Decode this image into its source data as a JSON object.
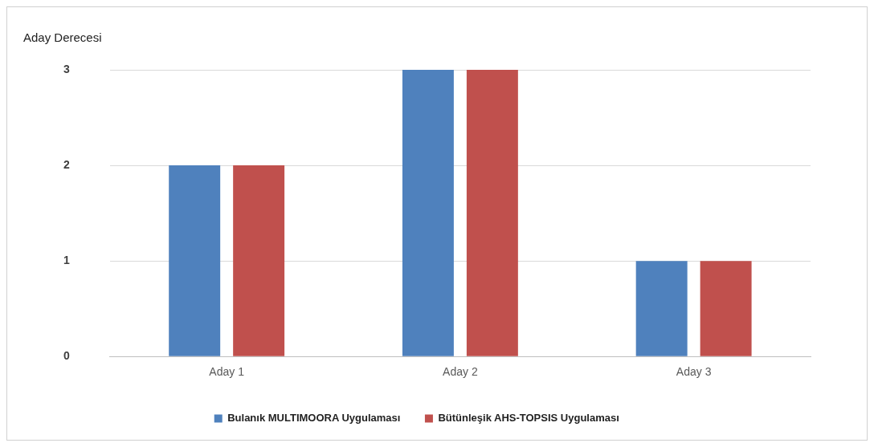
{
  "chart_data": {
    "type": "bar",
    "title": "Aday Derecesi",
    "categories": [
      "Aday 1",
      "Aday 2",
      "Aday 3"
    ],
    "series": [
      {
        "name": "Bulanık MULTIMOORA Uygulaması",
        "color": "#4f81bd",
        "values": [
          2,
          3,
          1
        ]
      },
      {
        "name": "Bütünleşik AHS-TOPSIS Uygulaması",
        "color": "#c0504d",
        "values": [
          2,
          3,
          1
        ]
      }
    ],
    "ylim": [
      0,
      3
    ],
    "yticks": [
      0,
      1,
      2,
      3
    ],
    "grid": "y",
    "legend": "bottom"
  }
}
